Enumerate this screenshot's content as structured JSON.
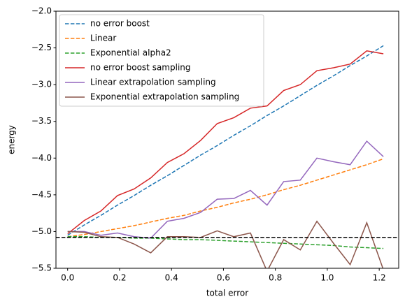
{
  "chart_data": {
    "type": "line",
    "xlabel": "total error",
    "ylabel": "energy",
    "x": [
      0,
      0.064,
      0.128,
      0.192,
      0.256,
      0.32,
      0.384,
      0.448,
      0.512,
      0.576,
      0.64,
      0.704,
      0.768,
      0.832,
      0.896,
      0.96,
      1.024,
      1.088,
      1.152,
      1.216
    ],
    "series": [
      {
        "name": "no error boost",
        "color": "#1f77b4",
        "linestyle": "dashed",
        "values": [
          -5.05,
          -4.91,
          -4.78,
          -4.64,
          -4.51,
          -4.37,
          -4.24,
          -4.1,
          -3.96,
          -3.83,
          -3.69,
          -3.56,
          -3.42,
          -3.29,
          -3.15,
          -3.01,
          -2.88,
          -2.74,
          -2.61,
          -2.47
        ]
      },
      {
        "name": "Linear",
        "color": "#ff7f0e",
        "linestyle": "dashed",
        "values": [
          -5.07,
          -5.04,
          -5.0,
          -4.96,
          -4.92,
          -4.87,
          -4.82,
          -4.78,
          -4.72,
          -4.67,
          -4.61,
          -4.56,
          -4.5,
          -4.43,
          -4.37,
          -4.3,
          -4.23,
          -4.16,
          -4.09,
          -4.01
        ]
      },
      {
        "name": "Exponential alpha2",
        "color": "#2ca02c",
        "linestyle": "dashed",
        "values": [
          -5.07,
          -5.07,
          -5.08,
          -5.08,
          -5.09,
          -5.09,
          -5.1,
          -5.11,
          -5.11,
          -5.12,
          -5.13,
          -5.14,
          -5.15,
          -5.16,
          -5.17,
          -5.18,
          -5.19,
          -5.21,
          -5.22,
          -5.23
        ]
      },
      {
        "name": "no error boost sampling",
        "color": "#d62728",
        "linestyle": "solid",
        "values": [
          -5.03,
          -4.85,
          -4.72,
          -4.51,
          -4.42,
          -4.27,
          -4.06,
          -3.94,
          -3.76,
          -3.53,
          -3.45,
          -3.32,
          -3.29,
          -3.08,
          -3.0,
          -2.81,
          -2.77,
          -2.72,
          -2.54,
          -2.58
        ]
      },
      {
        "name": "Linear extrapolation sampling",
        "color": "#9467bd",
        "linestyle": "solid",
        "values": [
          -5.0,
          -5.0,
          -5.05,
          -5.02,
          -5.07,
          -5.09,
          -4.86,
          -4.82,
          -4.74,
          -4.56,
          -4.55,
          -4.44,
          -4.64,
          -4.32,
          -4.3,
          -4.0,
          -4.05,
          -4.09,
          -3.77,
          -3.98
        ]
      },
      {
        "name": "Exponential extrapolation sampling",
        "color": "#8c564b",
        "linestyle": "solid",
        "values": [
          -5.0,
          -5.01,
          -5.07,
          -5.08,
          -5.17,
          -5.29,
          -5.07,
          -5.07,
          -5.08,
          -4.99,
          -5.07,
          -5.02,
          -5.54,
          -5.11,
          -5.25,
          -4.86,
          -5.16,
          -5.45,
          -4.88,
          -5.52
        ]
      }
    ],
    "hline": {
      "value": -5.08,
      "color": "#000000",
      "linestyle": "dashed"
    },
    "xlim": [
      -0.045,
      1.275
    ],
    "ylim": [
      -5.5,
      -2.0
    ],
    "xticks": [
      {
        "value": 0,
        "label": "0.0"
      },
      {
        "value": 0.2,
        "label": "0.2"
      },
      {
        "value": 0.4,
        "label": "0.4"
      },
      {
        "value": 0.6,
        "label": "0.6"
      },
      {
        "value": 0.8,
        "label": "0.8"
      },
      {
        "value": 1.0,
        "label": "1.0"
      },
      {
        "value": 1.2,
        "label": "1.2"
      }
    ],
    "yticks": [
      {
        "value": -5.5,
        "label": "−5.5"
      },
      {
        "value": -5.0,
        "label": "−5.0"
      },
      {
        "value": -4.5,
        "label": "−4.5"
      },
      {
        "value": -4.0,
        "label": "−4.0"
      },
      {
        "value": -3.5,
        "label": "−3.5"
      },
      {
        "value": -3.0,
        "label": "−3.0"
      },
      {
        "value": -2.5,
        "label": "−2.5"
      },
      {
        "value": -2.0,
        "label": "−2.0"
      }
    ],
    "legend": "upper left",
    "grid": false
  }
}
